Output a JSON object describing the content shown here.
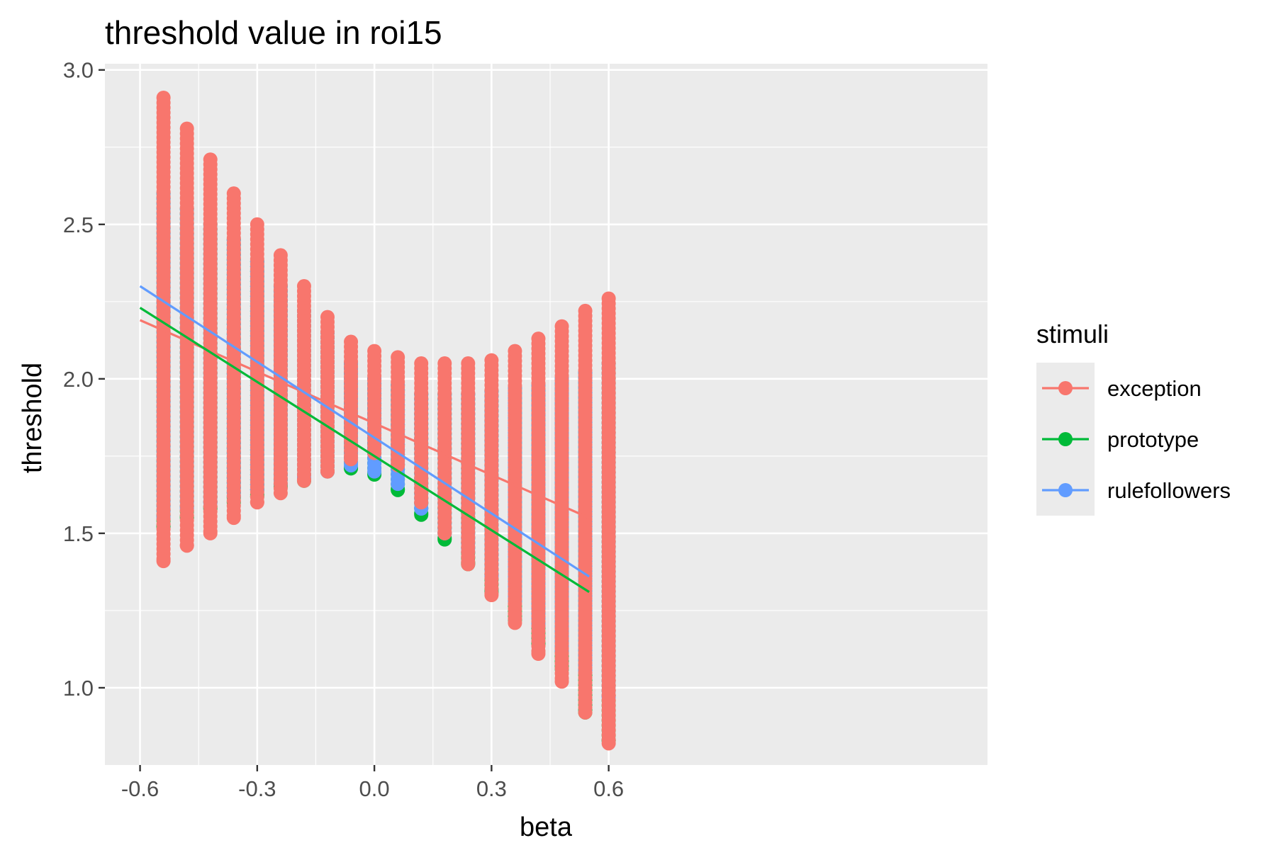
{
  "chart_data": {
    "type": "scatter",
    "title": "threshold value in roi15",
    "xlabel": "beta",
    "ylabel": "threshold",
    "xlim": [
      -0.69,
      1.57
    ],
    "ylim": [
      0.75,
      3.02
    ],
    "x_ticks": [
      {
        "value": -0.6,
        "label": "-0.6"
      },
      {
        "value": -0.3,
        "label": "-0.3"
      },
      {
        "value": 0.0,
        "label": "0.0"
      },
      {
        "value": 0.3,
        "label": "0.3"
      },
      {
        "value": 0.6,
        "label": "0.6"
      }
    ],
    "y_ticks": [
      {
        "value": 1.0,
        "label": "1.0"
      },
      {
        "value": 1.5,
        "label": "1.5"
      },
      {
        "value": 2.0,
        "label": "2.0"
      },
      {
        "value": 2.5,
        "label": "2.5"
      },
      {
        "value": 3.0,
        "label": "3.0"
      }
    ],
    "x_minor": [
      -0.45,
      -0.15,
      0.15,
      0.45
    ],
    "y_minor": [
      1.25,
      1.75,
      2.25,
      2.75
    ],
    "grid": true,
    "panel_background": "#EBEBEB",
    "legend": {
      "title": "stimuli",
      "position": "right",
      "entries": [
        {
          "label": "exception",
          "color": "#F8766D"
        },
        {
          "label": "prototype",
          "color": "#00BA38"
        },
        {
          "label": "rulefollowers",
          "color": "#619CFF"
        }
      ]
    },
    "beta_columns": [
      -0.54,
      -0.48,
      -0.42,
      -0.36,
      -0.3,
      -0.24,
      -0.18,
      -0.12,
      -0.06,
      0.0,
      0.06,
      0.12,
      0.18,
      0.24,
      0.3,
      0.36,
      0.42,
      0.48,
      0.54,
      0.6
    ],
    "series": [
      {
        "name": "exception",
        "color": "#F8766D",
        "column_ranges": [
          [
            1.41,
            2.91
          ],
          [
            1.46,
            2.81
          ],
          [
            1.5,
            2.71
          ],
          [
            1.55,
            2.6
          ],
          [
            1.6,
            2.5
          ],
          [
            1.63,
            2.4
          ],
          [
            1.67,
            2.3
          ],
          [
            1.7,
            2.2
          ],
          [
            1.74,
            2.12
          ],
          [
            1.76,
            2.09
          ],
          [
            1.72,
            2.07
          ],
          [
            1.6,
            2.05
          ],
          [
            1.5,
            2.05
          ],
          [
            1.4,
            2.05
          ],
          [
            1.3,
            2.06
          ],
          [
            1.21,
            2.09
          ],
          [
            1.11,
            2.13
          ],
          [
            1.02,
            2.17
          ],
          [
            0.92,
            2.22
          ],
          [
            0.82,
            2.26
          ]
        ],
        "fit_line": {
          "x": [
            -0.6,
            0.55
          ],
          "y": [
            2.19,
            1.55
          ]
        }
      },
      {
        "name": "prototype",
        "color": "#00BA38",
        "column_ranges": [
          [
            1.52,
            2.6
          ],
          [
            1.55,
            2.55
          ],
          [
            1.58,
            2.5
          ],
          [
            1.6,
            2.45
          ],
          [
            1.62,
            2.38
          ],
          [
            1.65,
            2.3
          ],
          [
            1.67,
            2.22
          ],
          [
            1.7,
            2.15
          ],
          [
            1.71,
            2.05
          ],
          [
            1.69,
            2.0
          ],
          [
            1.64,
            1.98
          ],
          [
            1.56,
            1.95
          ],
          [
            1.48,
            1.95
          ],
          [
            1.4,
            1.95
          ],
          [
            1.31,
            1.96
          ],
          [
            1.22,
            1.97
          ],
          [
            1.14,
            1.98
          ],
          [
            1.06,
            2.0
          ],
          [
            0.92,
            2.02
          ],
          [
            0.83,
            2.05
          ]
        ],
        "fit_line": {
          "x": [
            -0.6,
            0.55
          ],
          "y": [
            2.23,
            1.31
          ]
        }
      },
      {
        "name": "rulefollowers",
        "color": "#619CFF",
        "column_ranges": [
          [
            1.55,
            2.6
          ],
          [
            1.58,
            2.55
          ],
          [
            1.6,
            2.5
          ],
          [
            1.62,
            2.45
          ],
          [
            1.64,
            2.38
          ],
          [
            1.66,
            2.3
          ],
          [
            1.68,
            2.22
          ],
          [
            1.7,
            2.15
          ],
          [
            1.72,
            2.05
          ],
          [
            1.7,
            2.0
          ],
          [
            1.66,
            1.98
          ],
          [
            1.58,
            1.95
          ],
          [
            1.5,
            1.95
          ],
          [
            1.44,
            1.95
          ],
          [
            1.36,
            1.96
          ],
          [
            1.28,
            1.97
          ],
          [
            1.2,
            1.98
          ],
          [
            1.12,
            2.0
          ],
          [
            1.05,
            2.02
          ],
          [
            0.97,
            2.05
          ]
        ],
        "fit_line": {
          "x": [
            -0.6,
            0.55
          ],
          "y": [
            2.3,
            1.36
          ]
        }
      }
    ]
  }
}
